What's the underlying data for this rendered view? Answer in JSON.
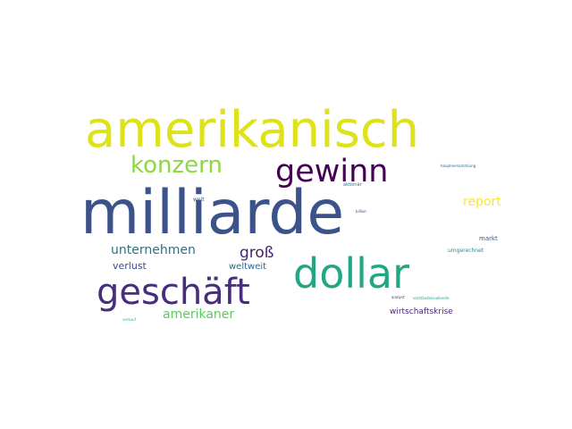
{
  "words": [
    {
      "text": "milliarde",
      "color": "#3b528b"
    },
    {
      "text": "amerikanisch",
      "color": "#dde318"
    },
    {
      "text": "dollar",
      "color": "#22a784"
    },
    {
      "text": "geschäft",
      "color": "#472d7b"
    },
    {
      "text": "gewinn",
      "color": "#440154"
    },
    {
      "text": "konzern",
      "color": "#8fd744"
    },
    {
      "text": "unternehmen",
      "color": "#2c728e"
    },
    {
      "text": "groß",
      "color": "#482173"
    },
    {
      "text": "amerikaner",
      "color": "#5ec962"
    },
    {
      "text": "report",
      "color": "#fde725"
    },
    {
      "text": "verlust",
      "color": "#3e4989"
    },
    {
      "text": "weltweit",
      "color": "#31688e"
    },
    {
      "text": "wirtschaftskrise",
      "color": "#482878"
    },
    {
      "text": "markt",
      "color": "#3b528b"
    },
    {
      "text": "umgerechnet",
      "color": "#21918c"
    },
    {
      "text": "hauptversammlung",
      "color": "#31688e"
    },
    {
      "text": "aktionär",
      "color": "#2c728e"
    },
    {
      "text": "weit",
      "color": "#3b528b"
    },
    {
      "text": "billion",
      "color": "#414487"
    },
    {
      "text": "analyst",
      "color": "#46327e"
    },
    {
      "text": "verständnisvollende",
      "color": "#1f9e89"
    },
    {
      "text": "verkauf",
      "color": "#35b779"
    }
  ]
}
